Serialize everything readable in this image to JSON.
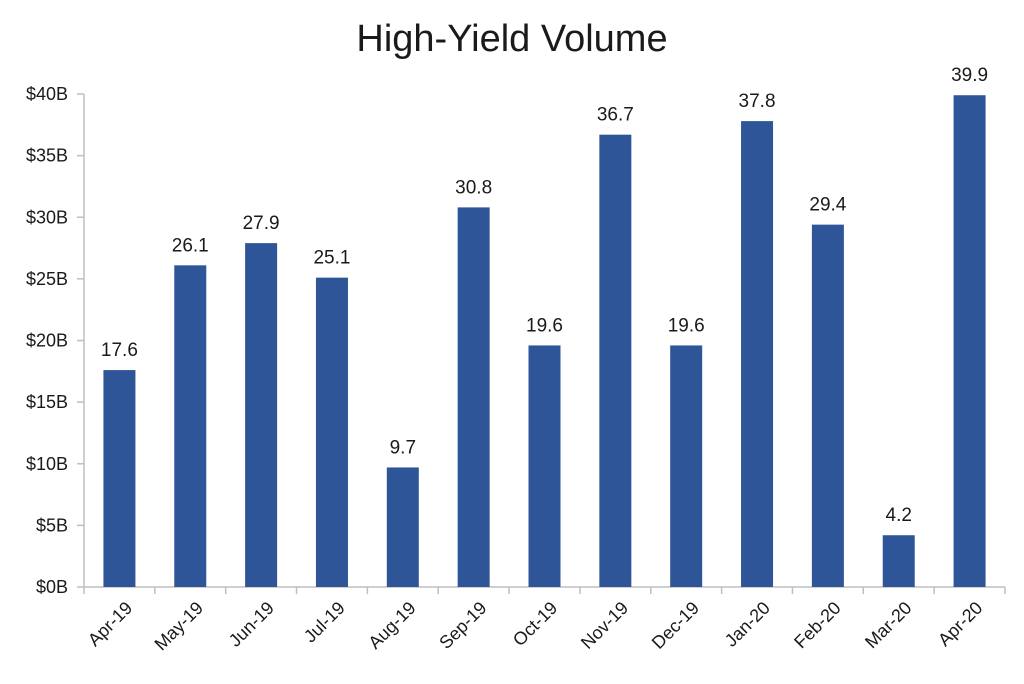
{
  "chart_data": {
    "type": "bar",
    "title": "High-Yield Volume",
    "xlabel": "",
    "ylabel": "",
    "categories": [
      "Apr-19",
      "May-19",
      "Jun-19",
      "Jul-19",
      "Aug-19",
      "Sep-19",
      "Oct-19",
      "Nov-19",
      "Dec-19",
      "Jan-20",
      "Feb-20",
      "Mar-20",
      "Apr-20"
    ],
    "values": [
      17.6,
      26.1,
      27.9,
      25.1,
      9.7,
      30.8,
      19.6,
      36.7,
      19.6,
      37.8,
      29.4,
      4.2,
      39.9
    ],
    "data_labels": [
      "17.6",
      "26.1",
      "27.9",
      "25.1",
      "9.7",
      "30.8",
      "19.6",
      "36.7",
      "19.6",
      "37.8",
      "29.4",
      "4.2",
      "39.9"
    ],
    "y_ticks": [
      0,
      5,
      10,
      15,
      20,
      25,
      30,
      35,
      40
    ],
    "y_tick_labels": [
      "$0B",
      "$5B",
      "$10B",
      "$15B",
      "$20B",
      "$25B",
      "$30B",
      "$35B",
      "$40B"
    ],
    "ylim": [
      0,
      40
    ],
    "grid": false,
    "legend": "none",
    "bar_color": "#2e5597"
  }
}
